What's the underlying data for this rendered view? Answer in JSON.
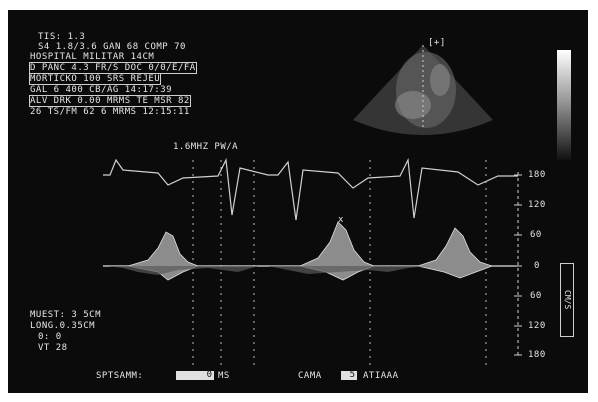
{
  "header": {
    "line1": "TIS: 1.3",
    "line2": "S4 1.8/3.6  GAN  68 COMP 70",
    "line3": "HOSPITAL MILITAR        14CM",
    "line4": "D PANC   4.3 FR/S   DOC 0/0/E/FA",
    "line5": "MORTICKO 100 SRS REJEU",
    "line6": "GAL 6   400 CB/AG  14:17:39",
    "line7": "ALV DRK  0.00 MRMS  TE MSR  82",
    "line8": "26  TS/FM  62 6 MRMS  12:15:11"
  },
  "spectral_title": "1.6MHZ  PW/A",
  "scale_labels": [
    "180",
    "120",
    "60",
    "0",
    "60",
    "120",
    "180"
  ],
  "lower_left": {
    "line1": "MUEST: 3 5CM",
    "line2": "LONG.0.35CM",
    "line3": "0: 0",
    "line4": "VT 28"
  },
  "bottom": {
    "label1": "SPTSAMM:",
    "value1": "0",
    "unit1": "MS",
    "label2": "CAMA",
    "value2": "5",
    "label3": "ATIAAA"
  },
  "side_box_label": "CM/S",
  "probe_marker": "[+]",
  "colors": {
    "background": "#0b0b0b",
    "trace": "#d0d0d0",
    "text": "#e6e6e6"
  }
}
